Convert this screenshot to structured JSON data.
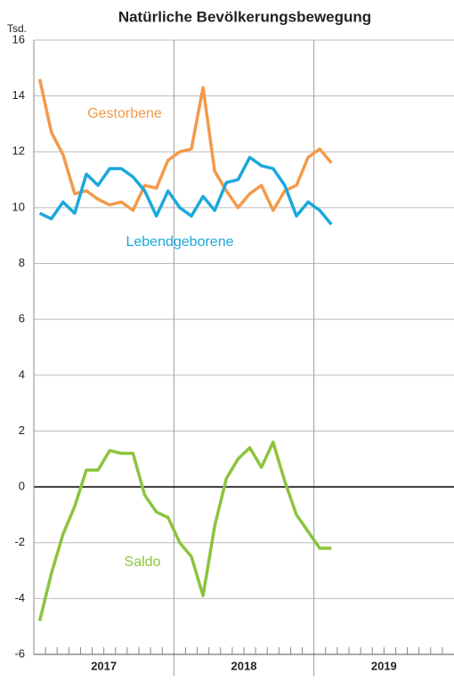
{
  "chart_data": {
    "type": "line",
    "title": "Natürliche Bevölkerungsbewegung",
    "y_unit": "Tsd.",
    "categories": [
      null,
      null,
      null,
      null,
      null,
      null,
      null,
      null,
      null,
      null,
      null,
      null,
      null,
      null,
      null,
      null,
      null,
      null,
      null,
      null,
      null,
      null,
      null,
      null,
      null,
      null,
      null,
      null,
      null,
      null,
      null,
      null,
      null,
      null,
      null,
      null
    ],
    "year_labels": [
      "2017",
      "2018",
      "2019"
    ],
    "series": [
      {
        "name": "Gestorbene",
        "color": "#f39a4a",
        "values": [
          14.6,
          12.7,
          11.9,
          10.5,
          10.6,
          10.3,
          10.1,
          10.2,
          9.9,
          10.8,
          10.7,
          11.7,
          12.0,
          12.1,
          14.3,
          11.3,
          10.6,
          10.0,
          10.5,
          10.8,
          9.9,
          10.6,
          10.8,
          11.8,
          12.1,
          11.6,
          null,
          null,
          null,
          null,
          null,
          null,
          null,
          null,
          null,
          null
        ]
      },
      {
        "name": "Lebendgeborene",
        "color": "#1ca8dc",
        "values": [
          9.8,
          9.6,
          10.2,
          9.8,
          11.2,
          10.8,
          11.4,
          11.4,
          11.1,
          10.6,
          9.7,
          10.6,
          10.0,
          9.7,
          10.4,
          9.9,
          10.9,
          11.0,
          11.8,
          11.5,
          11.4,
          10.8,
          9.7,
          10.2,
          9.9,
          9.4,
          null,
          null,
          null,
          null,
          null,
          null,
          null,
          null,
          null,
          null
        ]
      },
      {
        "name": "Saldo",
        "color": "#8cc43e",
        "values": [
          -4.8,
          -3.1,
          -1.7,
          -0.7,
          0.6,
          0.6,
          1.3,
          1.2,
          1.2,
          -0.3,
          -0.9,
          -1.1,
          -2.0,
          -2.5,
          -3.9,
          -1.4,
          0.3,
          1.0,
          1.4,
          0.7,
          1.6,
          0.2,
          -1.0,
          -1.6,
          -2.2,
          -2.2,
          null,
          null,
          null,
          null,
          null,
          null,
          null,
          null,
          null,
          null
        ]
      }
    ],
    "ylim": [
      -6,
      16
    ],
    "yticks": [
      -6,
      -4,
      -2,
      0,
      2,
      4,
      6,
      8,
      10,
      12,
      14,
      16
    ],
    "grid": true
  }
}
